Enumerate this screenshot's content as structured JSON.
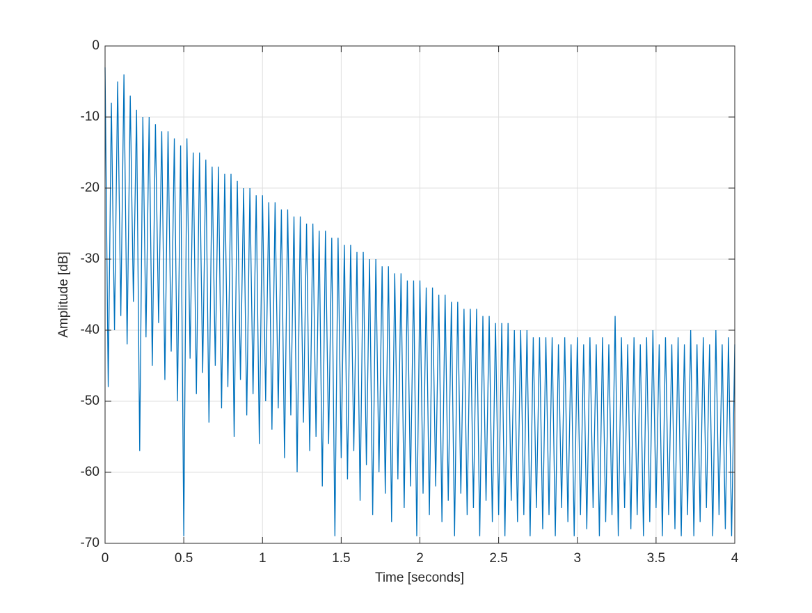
{
  "chart_data": {
    "type": "line",
    "xlabel": "Time [seconds]",
    "ylabel": "Amplitude [dB]",
    "x": [
      0,
      0.02,
      0.04,
      0.06,
      0.08,
      0.1,
      0.12,
      0.14,
      0.16,
      0.18,
      0.2,
      0.22,
      0.24,
      0.26,
      0.28,
      0.3,
      0.32,
      0.34,
      0.36,
      0.38,
      0.4,
      0.42,
      0.44,
      0.46,
      0.48,
      0.5,
      0.52,
      0.54,
      0.56,
      0.58,
      0.6,
      0.62,
      0.64,
      0.66,
      0.68,
      0.7,
      0.72,
      0.74,
      0.76,
      0.78,
      0.8,
      0.82,
      0.84,
      0.86,
      0.88,
      0.9,
      0.92,
      0.94,
      0.96,
      0.98,
      1,
      1.02,
      1.04,
      1.06,
      1.08,
      1.1,
      1.12,
      1.14,
      1.16,
      1.18,
      1.2,
      1.22,
      1.24,
      1.26,
      1.28,
      1.3,
      1.32,
      1.34,
      1.36,
      1.38,
      1.4,
      1.42,
      1.44,
      1.46,
      1.48,
      1.5,
      1.52,
      1.54,
      1.56,
      1.58,
      1.6,
      1.62,
      1.64,
      1.66,
      1.68,
      1.7,
      1.72,
      1.74,
      1.76,
      1.78,
      1.8,
      1.82,
      1.84,
      1.86,
      1.88,
      1.9,
      1.92,
      1.94,
      1.96,
      1.98,
      2,
      2.02,
      2.04,
      2.06,
      2.08,
      2.1,
      2.12,
      2.14,
      2.16,
      2.18,
      2.2,
      2.22,
      2.24,
      2.26,
      2.28,
      2.3,
      2.32,
      2.34,
      2.36,
      2.38,
      2.4,
      2.42,
      2.44,
      2.46,
      2.48,
      2.5,
      2.52,
      2.54,
      2.56,
      2.58,
      2.6,
      2.62,
      2.64,
      2.66,
      2.68,
      2.7,
      2.72,
      2.74,
      2.76,
      2.78,
      2.8,
      2.82,
      2.84,
      2.86,
      2.88,
      2.9,
      2.92,
      2.94,
      2.96,
      2.98,
      3,
      3.02,
      3.04,
      3.06,
      3.08,
      3.1,
      3.12,
      3.14,
      3.16,
      3.18,
      3.2,
      3.22,
      3.24,
      3.26,
      3.28,
      3.3,
      3.32,
      3.34,
      3.36,
      3.38,
      3.4,
      3.42,
      3.44,
      3.46,
      3.48,
      3.5,
      3.52,
      3.54,
      3.56,
      3.58,
      3.6,
      3.62,
      3.64,
      3.66,
      3.68,
      3.7,
      3.72,
      3.74,
      3.76,
      3.78,
      3.8,
      3.82,
      3.84,
      3.86,
      3.88,
      3.9,
      3.92,
      3.94,
      3.96,
      3.98,
      4
    ],
    "values": [
      -3,
      -48,
      -8,
      -40,
      -5,
      -38,
      -4,
      -42,
      -7,
      -36,
      -9,
      -57,
      -10,
      -41,
      -10,
      -45,
      -11,
      -39,
      -12,
      -47,
      -12,
      -43,
      -13,
      -50,
      -14,
      -69,
      -13,
      -44,
      -15,
      -49,
      -15,
      -46,
      -16,
      -53,
      -17,
      -45,
      -17,
      -51,
      -18,
      -48,
      -18,
      -55,
      -19,
      -47,
      -20,
      -52,
      -20,
      -49,
      -21,
      -56,
      -21,
      -50,
      -22,
      -54,
      -22,
      -51,
      -23,
      -58,
      -23,
      -52,
      -24,
      -60,
      -24,
      -53,
      -25,
      -57,
      -25,
      -55,
      -26,
      -62,
      -26,
      -56,
      -27,
      -69,
      -27,
      -58,
      -28,
      -61,
      -28,
      -57,
      -29,
      -64,
      -29,
      -59,
      -30,
      -66,
      -30,
      -60,
      -31,
      -63,
      -31,
      -67,
      -32,
      -61,
      -32,
      -65,
      -33,
      -62,
      -33,
      -69,
      -33,
      -63,
      -34,
      -66,
      -34,
      -62,
      -35,
      -67,
      -35,
      -64,
      -36,
      -69,
      -36,
      -63,
      -37,
      -66,
      -37,
      -65,
      -37,
      -69,
      -38,
      -64,
      -38,
      -67,
      -39,
      -66,
      -39,
      -69,
      -39,
      -64,
      -40,
      -67,
      -40,
      -66,
      -40,
      -69,
      -41,
      -65,
      -41,
      -68,
      -41,
      -66,
      -41,
      -69,
      -42,
      -65,
      -41,
      -67,
      -42,
      -69,
      -41,
      -66,
      -42,
      -68,
      -41,
      -65,
      -42,
      -69,
      -41,
      -67,
      -42,
      -66,
      -38,
      -69,
      -41,
      -65,
      -42,
      -68,
      -41,
      -66,
      -42,
      -69,
      -41,
      -67,
      -40,
      -65,
      -42,
      -69,
      -41,
      -66,
      -42,
      -68,
      -41,
      -69,
      -42,
      -66,
      -40,
      -69,
      -42,
      -67,
      -41,
      -65,
      -42,
      -69,
      -40,
      -66,
      -42,
      -68,
      -41,
      -69,
      -42
    ],
    "color": "#0072bd",
    "xlim": [
      0,
      4
    ],
    "xticks": [
      0,
      0.5,
      1,
      1.5,
      2,
      2.5,
      3,
      3.5,
      4
    ],
    "ylim": [
      -70,
      0
    ],
    "yticks": [
      -70,
      -60,
      -50,
      -40,
      -30,
      -20,
      -10,
      0
    ],
    "grid": true
  }
}
